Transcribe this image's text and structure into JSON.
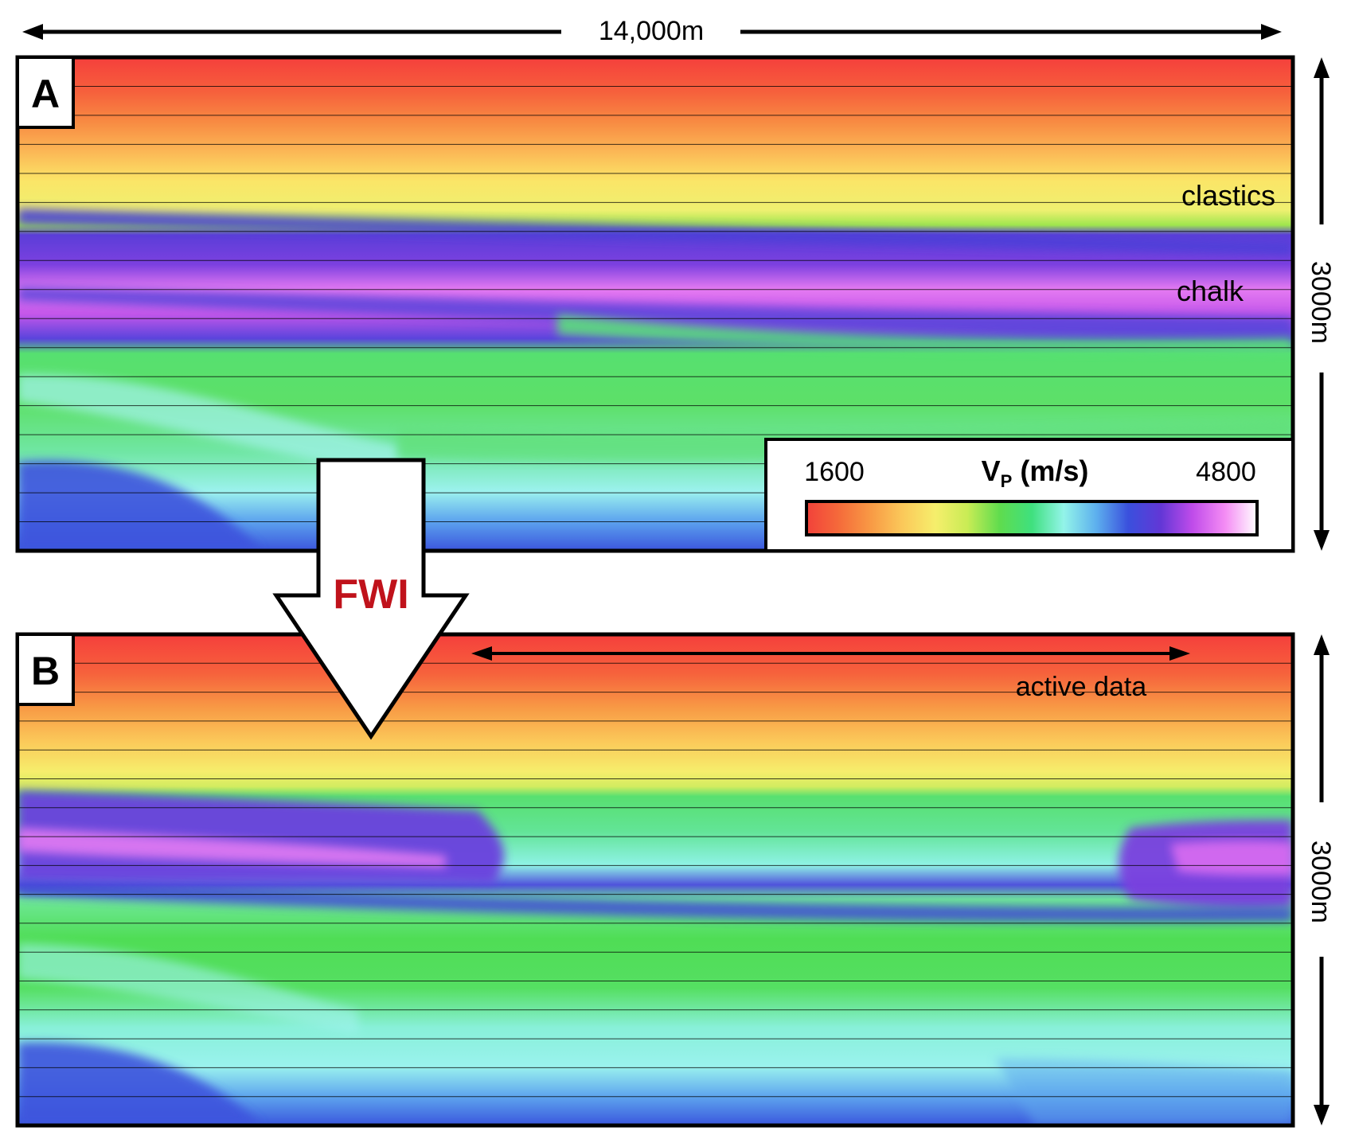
{
  "figure": {
    "width_label": "14,000m",
    "colorbar": {
      "min_label": "1600",
      "max_label": "4800",
      "title_main": "V",
      "title_sub": "P",
      "title_unit": " (m/s)",
      "colors": [
        "#f2413a",
        "#f56a3a",
        "#f89a45",
        "#fbc95a",
        "#f6ee6c",
        "#c9ec55",
        "#5fdc4e",
        "#3fe07e",
        "#93f4e9",
        "#5db0ee",
        "#3a50dd",
        "#6237d6",
        "#c04cea",
        "#f48cf4",
        "#ffffff"
      ]
    },
    "panels": [
      {
        "letter": "A",
        "depth_label": "3000m",
        "annotations": [
          {
            "text": "clastics"
          },
          {
            "text": "chalk"
          }
        ]
      },
      {
        "letter": "B",
        "depth_label": "3000m",
        "annotations": [
          {
            "text": "active data"
          }
        ]
      }
    ],
    "arrow_label": "FWI",
    "arrow_label_color": "#c0121b"
  }
}
